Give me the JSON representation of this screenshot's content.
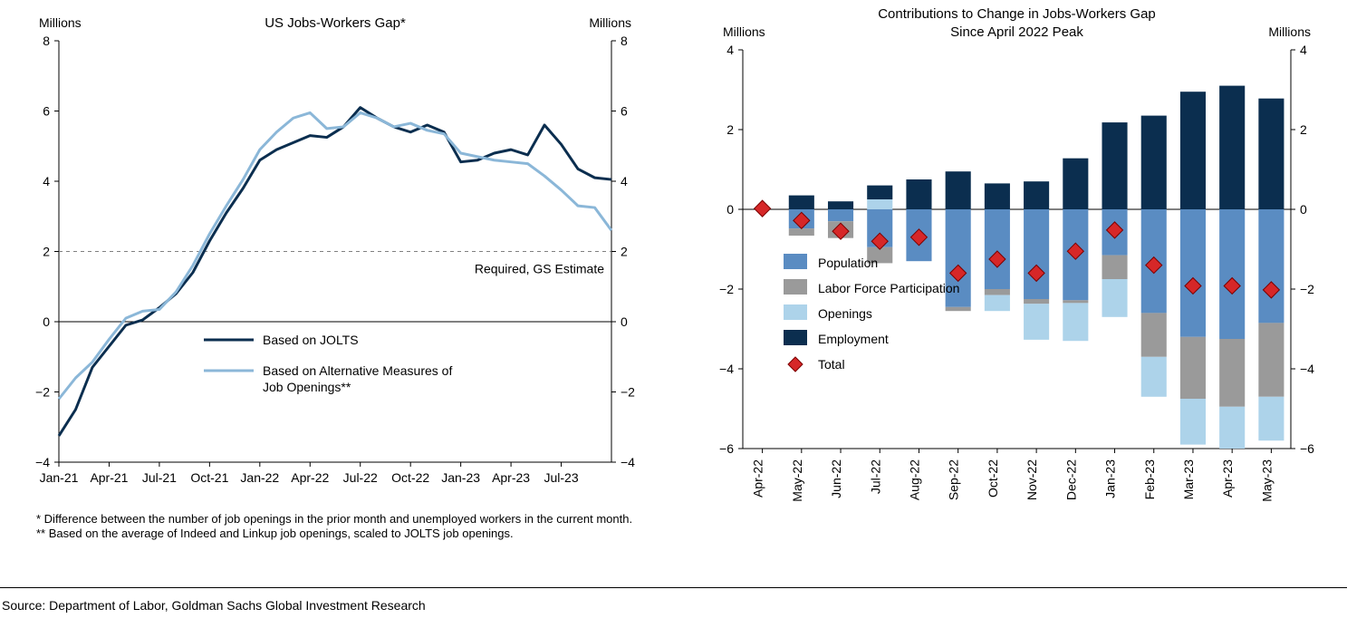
{
  "colors": {
    "jolts": "#0b2e4f",
    "alt": "#8bb7d8",
    "grid": "#b3b3b3",
    "axis": "#000000",
    "ref_dash": "#808080",
    "population": "#5a8cc2",
    "lfp": "#9a9a9a",
    "openings": "#add3ea",
    "employment": "#0b2e4f",
    "total_fill": "#d62728",
    "total_stroke": "#7a0000"
  },
  "left_chart": {
    "title": "US Jobs-Workers Gap*",
    "y_axis_label_left": "Millions",
    "y_axis_label_right": "Millions",
    "ylim": [
      -4,
      8
    ],
    "ytick_step": 2,
    "reference_line": {
      "value": 2,
      "label": "Required, GS Estimate"
    },
    "x_labels": [
      "Jan-21",
      "Apr-21",
      "Jul-21",
      "Oct-21",
      "Jan-22",
      "Apr-22",
      "Jul-22",
      "Oct-22",
      "Jan-23",
      "Apr-23",
      "Jul-23"
    ],
    "series": [
      {
        "name": "Based on JOLTS",
        "color_key": "jolts",
        "line_width": 3,
        "values": [
          -3.25,
          -2.5,
          -1.3,
          -0.7,
          -0.1,
          0.05,
          0.4,
          0.8,
          1.4,
          2.3,
          3.1,
          3.8,
          4.6,
          4.9,
          5.1,
          5.3,
          5.25,
          5.55,
          6.1,
          5.8,
          5.55,
          5.4,
          5.6,
          5.4,
          4.55,
          4.6,
          4.8,
          4.9,
          4.75,
          5.6,
          5.05,
          4.35,
          4.1,
          4.05
        ]
      },
      {
        "name": "Based on Alternative Measures of Job Openings**",
        "color_key": "alt",
        "line_width": 3,
        "values": [
          -2.2,
          -1.6,
          -1.15,
          -0.5,
          0.1,
          0.3,
          0.35,
          0.85,
          1.6,
          2.5,
          3.3,
          4.05,
          4.9,
          5.4,
          5.8,
          5.95,
          5.5,
          5.55,
          5.95,
          5.8,
          5.55,
          5.65,
          5.45,
          5.35,
          4.8,
          4.7,
          4.6,
          4.55,
          4.5,
          4.15,
          3.75,
          3.3,
          3.25,
          2.6
        ]
      }
    ],
    "legend_items": [
      {
        "label": "Based on JOLTS",
        "color_key": "jolts"
      },
      {
        "label": "Based on Alternative Measures of Job Openings**",
        "color_key": "alt"
      }
    ],
    "footnotes": [
      "* Difference between the number of job openings in the prior month and unemployed workers in the current month.",
      "** Based on the average of Indeed and Linkup job openings, scaled to JOLTS job openings."
    ]
  },
  "right_chart": {
    "title": "Contributions to Change in Jobs-Workers Gap Since April 2022 Peak",
    "y_axis_label_left": "Millions",
    "y_axis_label_right": "Millions",
    "ylim": [
      -6,
      4
    ],
    "ytick_step": 2,
    "categories": [
      "Apr-22",
      "May-22",
      "Jun-22",
      "Jul-22",
      "Aug-22",
      "Sep-22",
      "Oct-22",
      "Nov-22",
      "Dec-22",
      "Jan-23",
      "Feb-23",
      "Mar-23",
      "Apr-23",
      "May-23"
    ],
    "stacks": [
      {
        "name": "Population",
        "color_key": "population",
        "values": [
          0,
          -0.48,
          -0.3,
          -0.95,
          -1.3,
          -2.45,
          -2.0,
          -2.25,
          -2.28,
          -1.15,
          -2.6,
          -3.2,
          -3.25,
          -2.85
        ]
      },
      {
        "name": "Labor Force Participation",
        "color_key": "lfp",
        "values": [
          0,
          -0.18,
          -0.42,
          -0.4,
          0.0,
          -0.1,
          -0.15,
          -0.12,
          -0.07,
          -0.6,
          -1.1,
          -1.55,
          -1.7,
          -1.85
        ]
      },
      {
        "name": "Openings",
        "color_key": "openings",
        "values": [
          0,
          0.0,
          0.0,
          0.25,
          0.0,
          0.0,
          -0.4,
          -0.9,
          -0.95,
          -0.95,
          -1.0,
          -1.15,
          -1.05,
          -1.1
        ]
      },
      {
        "name": "Employment",
        "color_key": "employment",
        "values": [
          0,
          0.35,
          0.2,
          0.35,
          0.75,
          0.95,
          0.65,
          0.7,
          1.28,
          2.18,
          2.35,
          2.95,
          3.1,
          2.78
        ]
      }
    ],
    "total": {
      "name": "Total",
      "color_key": "total_fill",
      "values": [
        0.02,
        -0.28,
        -0.55,
        -0.8,
        -0.7,
        -1.6,
        -1.25,
        -1.6,
        -1.05,
        -0.52,
        -1.4,
        -1.92,
        -1.92,
        -2.02
      ]
    },
    "bar_width_ratio": 0.65,
    "legend_items": [
      {
        "kind": "box",
        "label": "Population",
        "color_key": "population"
      },
      {
        "kind": "box",
        "label": "Labor Force Participation",
        "color_key": "lfp"
      },
      {
        "kind": "box",
        "label": "Openings",
        "color_key": "openings"
      },
      {
        "kind": "box",
        "label": "Employment",
        "color_key": "employment"
      },
      {
        "kind": "diamond",
        "label": "Total",
        "color_key": "total_fill"
      }
    ]
  },
  "source_line": "Source: Department of Labor, Goldman Sachs Global Investment Research"
}
